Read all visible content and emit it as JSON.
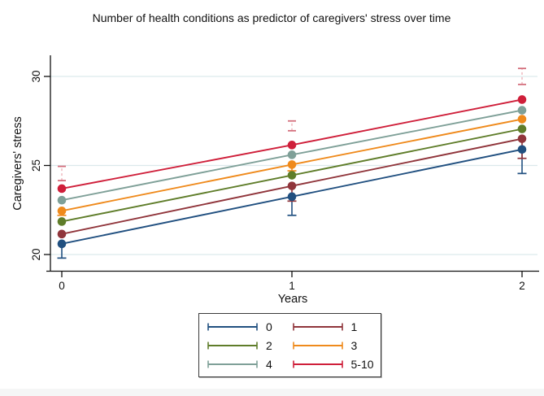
{
  "chart_data": {
    "type": "line",
    "title": "Number of health conditions as predictor of caregivers' stress over time",
    "xlabel": "Years",
    "ylabel": "Caregivers' stress",
    "x": [
      0,
      1,
      2
    ],
    "xticks": [
      0,
      1,
      2
    ],
    "yticks": [
      20,
      25,
      30
    ],
    "ylim": [
      19.1,
      31.2
    ],
    "xlim": [
      -0.07,
      2.07
    ],
    "grid": "horizontal",
    "grid_color": "#dce9ec",
    "axis_color": "#111111",
    "legend_position": "bottom-center",
    "legend_columns": 2,
    "series": [
      {
        "name": "0",
        "color": "#215080",
        "values": [
          20.6,
          23.25,
          25.9
        ],
        "ci_low": [
          19.8,
          22.2,
          24.55
        ]
      },
      {
        "name": "1",
        "color": "#90353b",
        "values": [
          21.15,
          23.85,
          26.5
        ],
        "ci_low": [
          null,
          23.0,
          25.4
        ]
      },
      {
        "name": "2",
        "color": "#5f7d2a",
        "values": [
          21.85,
          24.45,
          27.05
        ],
        "ci_low": [
          null,
          null,
          null
        ]
      },
      {
        "name": "3",
        "color": "#ef8a1c",
        "values": [
          22.45,
          25.05,
          27.6
        ],
        "ci_low": [
          22.2,
          24.7,
          null
        ]
      },
      {
        "name": "4",
        "color": "#7fa098",
        "values": [
          23.05,
          25.6,
          28.1
        ],
        "ci_low": [
          null,
          null,
          null
        ]
      },
      {
        "name": "5-10",
        "color": "#cf1f3a",
        "values": [
          23.7,
          26.15,
          28.7
        ],
        "upper_ci_segments": [
          [
            24.15,
            24.95
          ],
          [
            26.95,
            27.5
          ],
          [
            29.55,
            30.45
          ]
        ],
        "upper_ci_cap_color": "#d46f7d",
        "upper_ci_line_color": "#f0bcc2"
      }
    ]
  }
}
